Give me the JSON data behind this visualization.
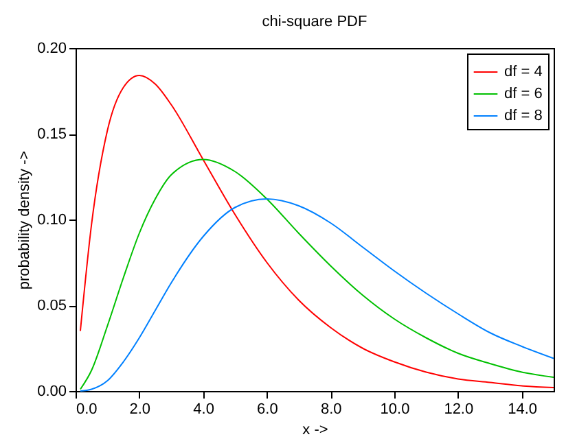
{
  "chart_data": {
    "type": "line",
    "title": "chi-square PDF",
    "xlabel": "x ->",
    "ylabel": "probability density ->",
    "x": [
      0.15,
      0.5,
      1,
      1.5,
      2,
      2.5,
      3,
      4,
      5,
      6,
      7,
      8,
      9,
      10,
      11,
      12,
      13,
      14,
      15
    ],
    "series": [
      {
        "name": "df = 4",
        "color": "#ff0000",
        "values": [
          0.035,
          0.097,
          0.152,
          0.177,
          0.184,
          0.179,
          0.167,
          0.135,
          0.103,
          0.075,
          0.053,
          0.037,
          0.025,
          0.017,
          0.011,
          0.007,
          0.005,
          0.003,
          0.002
        ]
      },
      {
        "name": "df = 6",
        "color": "#00c000",
        "values": [
          0.001,
          0.012,
          0.038,
          0.066,
          0.092,
          0.112,
          0.126,
          0.135,
          0.128,
          0.112,
          0.092,
          0.073,
          0.056,
          0.042,
          0.031,
          0.022,
          0.016,
          0.011,
          0.008
        ]
      },
      {
        "name": "df = 8",
        "color": "#0080ff",
        "values": [
          0.0,
          0.001,
          0.006,
          0.017,
          0.031,
          0.047,
          0.063,
          0.09,
          0.107,
          0.112,
          0.108,
          0.098,
          0.084,
          0.07,
          0.057,
          0.045,
          0.034,
          0.026,
          0.019
        ]
      }
    ],
    "xlim": [
      0,
      15
    ],
    "ylim": [
      0,
      0.2
    ],
    "xticks": [
      {
        "value": 0,
        "label": "0.0"
      },
      {
        "value": 2,
        "label": "2.0"
      },
      {
        "value": 4,
        "label": "4.0"
      },
      {
        "value": 6,
        "label": "6.0"
      },
      {
        "value": 8,
        "label": "8.0"
      },
      {
        "value": 10,
        "label": "10.0"
      },
      {
        "value": 12,
        "label": "12.0"
      },
      {
        "value": 14,
        "label": "14.0"
      }
    ],
    "yticks": [
      {
        "value": 0,
        "label": "0.00"
      },
      {
        "value": 0.05,
        "label": "0.05"
      },
      {
        "value": 0.1,
        "label": "0.10"
      },
      {
        "value": 0.15,
        "label": "0.15"
      },
      {
        "value": 0.2,
        "label": "0.20"
      }
    ],
    "grid": false,
    "legend": "top right",
    "marker": "none",
    "line_style": "solid"
  }
}
